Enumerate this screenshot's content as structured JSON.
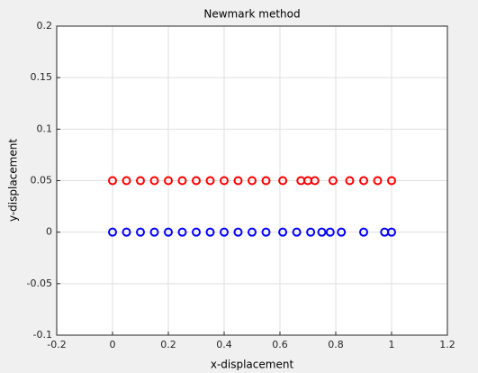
{
  "chart_data": {
    "type": "scatter",
    "title": "Newmark method",
    "x_label": "x-displacement",
    "y_label": "y-displacement",
    "series": [
      {
        "color": "#ff0000",
        "x": [
          0,
          0.05,
          0.1,
          0.15,
          0.2,
          0.25,
          0.3,
          0.35,
          0.4,
          0.45,
          0.5,
          0.55,
          0.61,
          0.675,
          0.7,
          0.725,
          0.79,
          0.85,
          0.9,
          0.95,
          1
        ],
        "values": [
          0.05,
          0.05,
          0.05,
          0.05,
          0.05,
          0.05,
          0.05,
          0.05,
          0.05,
          0.05,
          0.05,
          0.05,
          0.05,
          0.05,
          0.05,
          0.05,
          0.05,
          0.05,
          0.05,
          0.05,
          0.05
        ]
      },
      {
        "color": "#0000ff",
        "x": [
          0,
          0.05,
          0.1,
          0.15,
          0.2,
          0.25,
          0.3,
          0.35,
          0.4,
          0.45,
          0.5,
          0.55,
          0.61,
          0.66,
          0.71,
          0.75,
          0.78,
          0.82,
          0.9,
          0.975,
          1
        ],
        "values": [
          0,
          0,
          0,
          0,
          0,
          0,
          0,
          0,
          0,
          0,
          0,
          0,
          0,
          0,
          0,
          0,
          0,
          0,
          0,
          0,
          0
        ]
      }
    ],
    "xlim": [
      -0.2,
      1.2
    ],
    "xticks": [
      -0.2,
      0,
      0.2,
      0.4,
      0.6,
      0.8,
      1,
      1.2
    ],
    "ylim": [
      -0.1,
      0.2
    ],
    "yticks": [
      -0.1,
      -0.05,
      0,
      0.05,
      0.1,
      0.15,
      0.2
    ],
    "grid": true
  }
}
